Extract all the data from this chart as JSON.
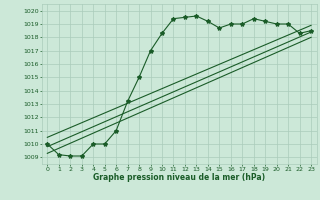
{
  "title": "Graphe pression niveau de la mer (hPa)",
  "bg_color": "#cce8d8",
  "grid_color": "#aaccbb",
  "line_color": "#1a5c28",
  "xlim": [
    -0.5,
    23.5
  ],
  "ylim": [
    1008.5,
    1020.5
  ],
  "xticks": [
    0,
    1,
    2,
    3,
    4,
    5,
    6,
    7,
    8,
    9,
    10,
    11,
    12,
    13,
    14,
    15,
    16,
    17,
    18,
    19,
    20,
    21,
    22,
    23
  ],
  "yticks": [
    1009,
    1010,
    1011,
    1012,
    1013,
    1014,
    1015,
    1016,
    1017,
    1018,
    1019,
    1020
  ],
  "main_series_x": [
    0,
    1,
    2,
    3,
    4,
    5,
    6,
    7,
    8,
    9,
    10,
    11,
    12,
    13,
    14,
    15,
    16,
    17,
    18,
    19,
    20,
    21,
    22,
    23
  ],
  "main_series_y": [
    1010.0,
    1009.2,
    1009.1,
    1009.1,
    1010.0,
    1010.0,
    1011.0,
    1013.2,
    1015.0,
    1017.0,
    1018.3,
    1019.4,
    1019.5,
    1019.6,
    1019.2,
    1018.7,
    1019.0,
    1019.0,
    1019.4,
    1019.2,
    1019.0,
    1019.0,
    1018.3,
    1018.5
  ],
  "trend1_x": [
    0,
    23
  ],
  "trend1_y": [
    1009.3,
    1018.0
  ],
  "trend2_x": [
    0,
    23
  ],
  "trend2_y": [
    1009.8,
    1018.4
  ],
  "trend3_x": [
    0,
    23
  ],
  "trend3_y": [
    1010.5,
    1018.9
  ],
  "tick_fontsize": 4.5,
  "label_fontsize": 5.5
}
